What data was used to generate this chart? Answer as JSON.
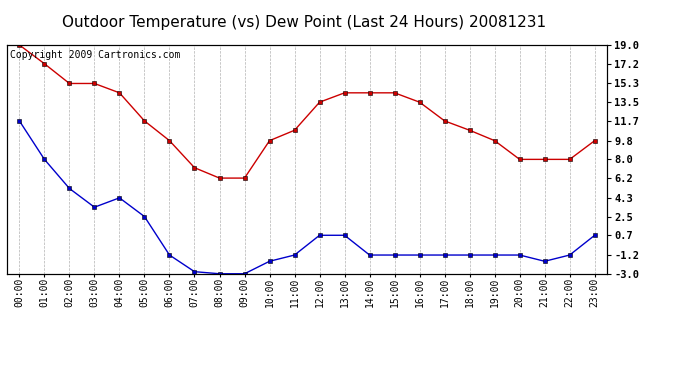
{
  "title": "Outdoor Temperature (vs) Dew Point (Last 24 Hours) 20081231",
  "copyright": "Copyright 2009 Cartronics.com",
  "hours": [
    "00:00",
    "01:00",
    "02:00",
    "03:00",
    "04:00",
    "05:00",
    "06:00",
    "07:00",
    "08:00",
    "09:00",
    "10:00",
    "11:00",
    "12:00",
    "13:00",
    "14:00",
    "15:00",
    "16:00",
    "17:00",
    "18:00",
    "19:00",
    "20:00",
    "21:00",
    "22:00",
    "23:00"
  ],
  "temp": [
    19.0,
    17.2,
    15.3,
    15.3,
    14.4,
    11.7,
    9.8,
    7.2,
    6.2,
    6.2,
    9.8,
    10.8,
    13.5,
    14.4,
    14.4,
    14.4,
    13.5,
    11.7,
    10.8,
    9.8,
    8.0,
    8.0,
    8.0,
    9.8
  ],
  "dew": [
    11.7,
    8.0,
    5.2,
    3.4,
    4.3,
    2.5,
    -1.2,
    -2.8,
    -3.0,
    -3.0,
    -1.8,
    -1.2,
    0.7,
    0.7,
    -1.2,
    -1.2,
    -1.2,
    -1.2,
    -1.2,
    -1.2,
    -1.2,
    -1.8,
    -1.2,
    0.7
  ],
  "yticks": [
    19.0,
    17.2,
    15.3,
    13.5,
    11.7,
    9.8,
    8.0,
    6.2,
    4.3,
    2.5,
    0.7,
    -1.2,
    -3.0
  ],
  "ylim": [
    -3.0,
    19.0
  ],
  "temp_color": "#cc0000",
  "dew_color": "#0000cc",
  "bg_color": "#ffffff",
  "grid_color": "#aaaaaa",
  "title_fontsize": 11,
  "copyright_fontsize": 7
}
